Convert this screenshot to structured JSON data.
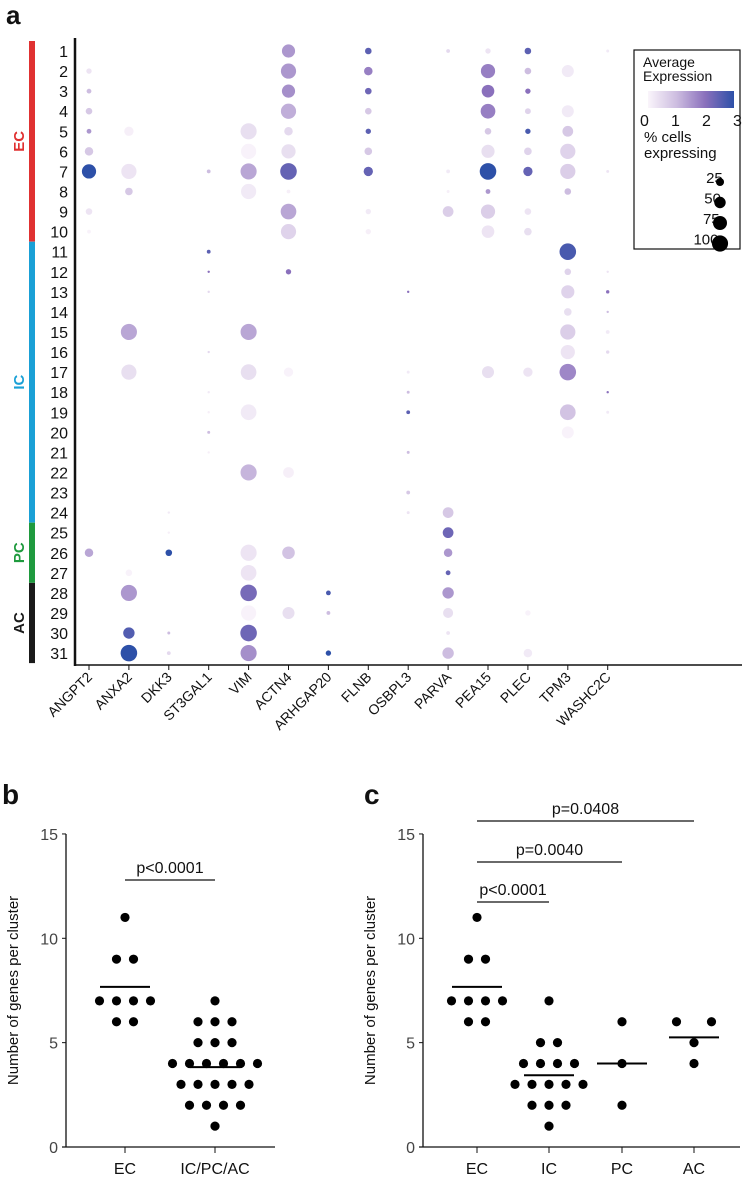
{
  "chart_data": [
    {
      "panel": "a",
      "type": "scatter",
      "subtype": "dotplot",
      "genes": [
        "ANGPT2",
        "ANXA2",
        "DKK3",
        "ST3GAL1",
        "VIM",
        "ACTN4",
        "ARHGAP20",
        "FLNB",
        "OSBPL3",
        "PARVA",
        "PEA15",
        "PLEC",
        "TPM3",
        "WASHC2C"
      ],
      "clusters": [
        "1",
        "2",
        "3",
        "4",
        "5",
        "6",
        "7",
        "8",
        "9",
        "10",
        "11",
        "12",
        "13",
        "14",
        "15",
        "16",
        "17",
        "18",
        "19",
        "20",
        "21",
        "22",
        "23",
        "24",
        "25",
        "26",
        "27",
        "28",
        "29",
        "30",
        "31"
      ],
      "groups": [
        {
          "name": "EC",
          "from": 1,
          "to": 10,
          "color": "#e03131"
        },
        {
          "name": "IC",
          "from": 11,
          "to": 24,
          "color": "#1aa0d6"
        },
        {
          "name": "PC",
          "from": 25,
          "to": 27,
          "color": "#1f9a3e"
        },
        {
          "name": "AC",
          "from": 28,
          "to": 31,
          "color": "#1a1a1a"
        }
      ],
      "legend": {
        "expr_title": "Average Expression",
        "expr_ticks": [
          "0",
          "1",
          "2",
          "3"
        ],
        "expr_range": [
          0,
          3
        ],
        "size_title_1": "% cells",
        "size_title_2": "expressing",
        "size_ticks": [
          "25",
          "50",
          "75",
          "100"
        ],
        "size_values": [
          25,
          50,
          75,
          100
        ]
      },
      "dot_fields": [
        "cluster",
        "gene",
        "pct_expressing",
        "avg_expression"
      ],
      "dots": [
        [
          1,
          "ACTN4",
          60,
          1.5
        ],
        [
          1,
          "FLNB",
          15,
          2.5
        ],
        [
          1,
          "PARVA",
          5,
          0.5
        ],
        [
          1,
          "PEA15",
          10,
          0.3
        ],
        [
          1,
          "PLEC",
          15,
          2.5
        ],
        [
          1,
          "WASHC2C",
          3,
          0.2
        ],
        [
          2,
          "ANGPT2",
          10,
          0.3
        ],
        [
          2,
          "ACTN4",
          80,
          1.5
        ],
        [
          2,
          "FLNB",
          25,
          1.8
        ],
        [
          2,
          "PEA15",
          70,
          1.8
        ],
        [
          2,
          "PLEC",
          15,
          1
        ],
        [
          2,
          "TPM3",
          50,
          0.2
        ],
        [
          3,
          "ANGPT2",
          8,
          1
        ],
        [
          3,
          "ACTN4",
          60,
          1.6
        ],
        [
          3,
          "FLNB",
          15,
          2.3
        ],
        [
          3,
          "PEA15",
          55,
          2
        ],
        [
          3,
          "PLEC",
          10,
          2
        ],
        [
          4,
          "ANGPT2",
          15,
          0.8
        ],
        [
          4,
          "ACTN4",
          80,
          1.2
        ],
        [
          4,
          "FLNB",
          15,
          0.8
        ],
        [
          4,
          "PEA15",
          75,
          1.8
        ],
        [
          4,
          "PLEC",
          12,
          0.6
        ],
        [
          4,
          "TPM3",
          50,
          0.2
        ],
        [
          5,
          "ANGPT2",
          8,
          1.5
        ],
        [
          5,
          "ANXA2",
          30,
          0.1
        ],
        [
          5,
          "VIM",
          90,
          0.4
        ],
        [
          5,
          "ACTN4",
          25,
          0.5
        ],
        [
          5,
          "FLNB",
          10,
          2.5
        ],
        [
          5,
          "PEA15",
          15,
          0.8
        ],
        [
          5,
          "PLEC",
          10,
          2.7
        ],
        [
          5,
          "TPM3",
          40,
          0.8
        ],
        [
          6,
          "ANGPT2",
          25,
          0.8
        ],
        [
          6,
          "VIM",
          80,
          0.05
        ],
        [
          6,
          "ACTN4",
          70,
          0.4
        ],
        [
          6,
          "FLNB",
          20,
          0.8
        ],
        [
          6,
          "PEA15",
          60,
          0.4
        ],
        [
          6,
          "PLEC",
          20,
          0.6
        ],
        [
          6,
          "TPM3",
          80,
          0.6
        ],
        [
          7,
          "ANGPT2",
          70,
          3
        ],
        [
          7,
          "ANXA2",
          80,
          0.3
        ],
        [
          7,
          "ST3GAL1",
          5,
          1
        ],
        [
          7,
          "VIM",
          90,
          1.3
        ],
        [
          7,
          "ACTN4",
          95,
          2.4
        ],
        [
          7,
          "FLNB",
          30,
          2.4
        ],
        [
          7,
          "PARVA",
          5,
          0.2
        ],
        [
          7,
          "PEA15",
          95,
          3
        ],
        [
          7,
          "PLEC",
          30,
          2.4
        ],
        [
          7,
          "TPM3",
          80,
          0.7
        ],
        [
          7,
          "WASHC2C",
          3,
          0.3
        ],
        [
          8,
          "ANXA2",
          20,
          0.8
        ],
        [
          8,
          "VIM",
          80,
          0.2
        ],
        [
          8,
          "ACTN4",
          5,
          0.1
        ],
        [
          8,
          "PARVA",
          3,
          0.1
        ],
        [
          8,
          "PEA15",
          8,
          1.5
        ],
        [
          8,
          "TPM3",
          15,
          1
        ],
        [
          9,
          "ANGPT2",
          15,
          0.3
        ],
        [
          9,
          "ACTN4",
          85,
          1.3
        ],
        [
          9,
          "FLNB",
          10,
          0.2
        ],
        [
          9,
          "PARVA",
          40,
          0.7
        ],
        [
          9,
          "PEA15",
          70,
          0.7
        ],
        [
          9,
          "PLEC",
          15,
          0.3
        ],
        [
          10,
          "ANGPT2",
          5,
          0.05
        ],
        [
          10,
          "ACTN4",
          80,
          0.6
        ],
        [
          10,
          "FLNB",
          10,
          0.1
        ],
        [
          10,
          "PEA15",
          55,
          0.3
        ],
        [
          10,
          "PLEC",
          20,
          0.4
        ],
        [
          11,
          "ST3GAL1",
          5,
          2.5
        ],
        [
          11,
          "TPM3",
          95,
          2.7
        ],
        [
          12,
          "ST3GAL1",
          2,
          2
        ],
        [
          12,
          "ACTN4",
          10,
          2
        ],
        [
          12,
          "TPM3",
          15,
          0.6
        ],
        [
          12,
          "WASHC2C",
          2,
          0.3
        ],
        [
          13,
          "ST3GAL1",
          2,
          0.5
        ],
        [
          13,
          "OSBPL3",
          2,
          2
        ],
        [
          13,
          "TPM3",
          60,
          0.6
        ],
        [
          13,
          "WASHC2C",
          4,
          2
        ],
        [
          14,
          "TPM3",
          20,
          0.4
        ],
        [
          14,
          "WASHC2C",
          2,
          1
        ],
        [
          15,
          "ANXA2",
          90,
          1.3
        ],
        [
          15,
          "VIM",
          90,
          1.3
        ],
        [
          15,
          "TPM3",
          80,
          0.7
        ],
        [
          15,
          "WASHC2C",
          5,
          0.2
        ],
        [
          16,
          "ST3GAL1",
          2,
          0.5
        ],
        [
          16,
          "TPM3",
          70,
          0.3
        ],
        [
          16,
          "WASHC2C",
          4,
          0.5
        ],
        [
          17,
          "ANXA2",
          80,
          0.4
        ],
        [
          17,
          "VIM",
          85,
          0.4
        ],
        [
          17,
          "ACTN4",
          30,
          0.05
        ],
        [
          17,
          "OSBPL3",
          3,
          0.2
        ],
        [
          17,
          "PEA15",
          50,
          0.4
        ],
        [
          17,
          "PLEC",
          30,
          0.3
        ],
        [
          17,
          "TPM3",
          95,
          1.7
        ],
        [
          18,
          "ST3GAL1",
          2,
          0.2
        ],
        [
          18,
          "OSBPL3",
          3,
          1
        ],
        [
          18,
          "WASHC2C",
          2,
          2
        ],
        [
          19,
          "ST3GAL1",
          2,
          0.1
        ],
        [
          19,
          "VIM",
          85,
          0.2
        ],
        [
          19,
          "OSBPL3",
          5,
          2.5
        ],
        [
          19,
          "TPM3",
          85,
          0.9
        ],
        [
          19,
          "WASHC2C",
          3,
          0.2
        ],
        [
          20,
          "ST3GAL1",
          3,
          1
        ],
        [
          20,
          "TPM3",
          50,
          0.05
        ],
        [
          21,
          "ST3GAL1",
          2,
          0.1
        ],
        [
          21,
          "OSBPL3",
          3,
          1
        ],
        [
          22,
          "VIM",
          90,
          1.1
        ],
        [
          22,
          "ACTN4",
          40,
          0.1
        ],
        [
          23,
          "OSBPL3",
          5,
          0.8
        ],
        [
          24,
          "DKK3",
          2,
          0.2
        ],
        [
          24,
          "OSBPL3",
          3,
          0.3
        ],
        [
          24,
          "PARVA",
          40,
          0.8
        ],
        [
          25,
          "DKK3",
          2,
          0.1
        ],
        [
          25,
          "PARVA",
          40,
          2.3
        ],
        [
          26,
          "ANGPT2",
          25,
          1.3
        ],
        [
          26,
          "DKK3",
          15,
          3
        ],
        [
          26,
          "VIM",
          90,
          0.3
        ],
        [
          26,
          "ACTN4",
          55,
          0.9
        ],
        [
          26,
          "PARVA",
          25,
          1.5
        ],
        [
          27,
          "ANXA2",
          15,
          0.05
        ],
        [
          27,
          "VIM",
          85,
          0.3
        ],
        [
          27,
          "PARVA",
          8,
          2.4
        ],
        [
          28,
          "ANXA2",
          90,
          1.5
        ],
        [
          28,
          "VIM",
          95,
          2.2
        ],
        [
          28,
          "ARHGAP20",
          8,
          2.7
        ],
        [
          28,
          "PARVA",
          45,
          1.5
        ],
        [
          29,
          "VIM",
          80,
          0.05
        ],
        [
          29,
          "ACTN4",
          50,
          0.4
        ],
        [
          29,
          "ARHGAP20",
          5,
          1
        ],
        [
          29,
          "PARVA",
          35,
          0.4
        ],
        [
          29,
          "PLEC",
          10,
          0.05
        ],
        [
          30,
          "ANXA2",
          45,
          2.6
        ],
        [
          30,
          "DKK3",
          3,
          1
        ],
        [
          30,
          "VIM",
          95,
          2.3
        ],
        [
          30,
          "PARVA",
          5,
          0.3
        ],
        [
          31,
          "ANXA2",
          95,
          3
        ],
        [
          31,
          "DKK3",
          5,
          0.5
        ],
        [
          31,
          "VIM",
          90,
          1.6
        ],
        [
          31,
          "ARHGAP20",
          10,
          3
        ],
        [
          31,
          "PARVA",
          45,
          1
        ],
        [
          31,
          "PLEC",
          25,
          0.2
        ]
      ]
    },
    {
      "panel": "b",
      "type": "scatter",
      "ylabel": "Number of genes per cluster",
      "ylim": [
        0,
        15
      ],
      "yticks": [
        "0",
        "5",
        "10",
        "15"
      ],
      "categories": [
        "EC",
        "IC/PC/AC"
      ],
      "series": [
        {
          "name": "EC",
          "values": [
            11,
            9,
            9,
            7,
            7,
            7,
            7,
            6,
            6
          ],
          "mean": 7.67
        },
        {
          "name": "IC/PC/AC",
          "values": [
            7,
            6,
            6,
            6,
            5,
            5,
            5,
            4,
            4,
            4,
            4,
            4,
            4,
            3,
            3,
            3,
            3,
            3,
            2,
            2,
            2,
            2,
            1
          ],
          "mean": 3.83
        }
      ],
      "comparisons": [
        {
          "from": "EC",
          "to": "IC/PC/AC",
          "label": "p<0.0001"
        }
      ]
    },
    {
      "panel": "c",
      "type": "scatter",
      "ylabel": "Number of genes per cluster",
      "ylim": [
        0,
        15
      ],
      "yticks": [
        "0",
        "5",
        "10",
        "15"
      ],
      "categories": [
        "EC",
        "IC",
        "PC",
        "AC"
      ],
      "series": [
        {
          "name": "EC",
          "values": [
            11,
            9,
            9,
            7,
            7,
            7,
            7,
            6,
            6
          ],
          "mean": 7.67
        },
        {
          "name": "IC",
          "values": [
            7,
            5,
            5,
            4,
            4,
            4,
            4,
            3,
            3,
            3,
            3,
            3,
            2,
            2,
            2,
            1
          ],
          "mean": 3.44
        },
        {
          "name": "PC",
          "values": [
            6,
            4,
            2
          ],
          "mean": 4
        },
        {
          "name": "AC",
          "values": [
            6,
            6,
            5,
            4
          ],
          "mean": 5.25
        }
      ],
      "comparisons": [
        {
          "from": "EC",
          "to": "IC",
          "label": "p<0.0001"
        },
        {
          "from": "EC",
          "to": "PC",
          "label": "p=0.0040"
        },
        {
          "from": "EC",
          "to": "AC",
          "label": "p=0.0408"
        }
      ]
    }
  ],
  "panel_labels": [
    "a",
    "b",
    "c"
  ]
}
